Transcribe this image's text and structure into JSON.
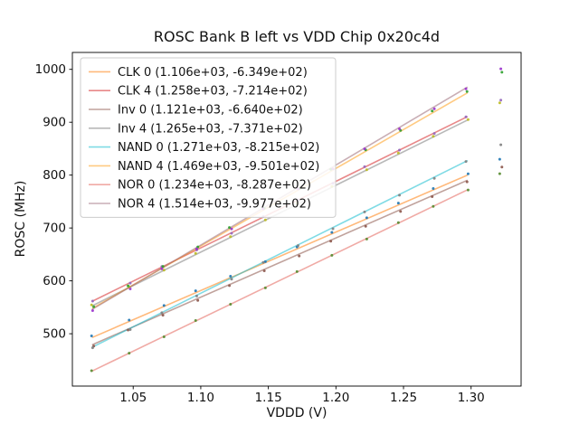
{
  "figure": {
    "window_title": "ROSC Bank B left vs VDD Chip 0x20c4d"
  },
  "chart_data": {
    "type": "scatter",
    "title": "ROSC Bank B left vs VDD Chip 0x20c4d",
    "xlabel": "VDDD (V)",
    "ylabel": "ROSC (MHz)",
    "xlim": [
      1.005,
      1.337
    ],
    "ylim": [
      401,
      1032
    ],
    "xticks": [
      "1.05",
      "1.10",
      "1.15",
      "1.20",
      "1.25",
      "1.30"
    ],
    "yticks": [
      "500",
      "600",
      "700",
      "800",
      "900",
      "1000"
    ],
    "grid": false,
    "legend_position": "upper-left",
    "fit_range": [
      1.02,
      1.297
    ],
    "x_points": [
      1.02,
      1.047,
      1.072,
      1.097,
      1.122,
      1.147,
      1.172,
      1.197,
      1.222,
      1.247,
      1.272,
      1.297,
      1.322
    ],
    "series": [
      {
        "name": "CLK 0",
        "legend_label": "CLK 0 (1.106e+03, -6.349e+02)",
        "slope": 1106.0,
        "intercept": -634.9,
        "line_color": "#ff7f0e",
        "dot_color": "#1f77b4",
        "y_points": [
          493.2,
          523.1,
          550.7,
          578.4,
          606.0,
          633.7,
          661.3,
          689.0,
          716.6,
          744.3,
          771.9,
          799.6,
          827.2
        ]
      },
      {
        "name": "CLK 4",
        "legend_label": "CLK 4 (1.258e+03, -7.214e+02)",
        "slope": 1258.0,
        "intercept": -721.4,
        "line_color": "#d62728",
        "dot_color": "#9467bd",
        "y_points": [
          561.8,
          595.7,
          627.2,
          658.6,
          690.1,
          721.5,
          753.0,
          784.4,
          815.9,
          847.3,
          878.8,
          910.2,
          941.7
        ]
      },
      {
        "name": "Inv 0",
        "legend_label": "Inv 0 (1.121e+03, -6.640e+02)",
        "slope": 1121.0,
        "intercept": -664.0,
        "line_color": "#8c564b",
        "dot_color": "#8c564b",
        "y_points": [
          479.4,
          509.7,
          537.7,
          565.7,
          593.8,
          621.8,
          649.8,
          677.8,
          705.9,
          733.9,
          761.9,
          789.9,
          818.0
        ]
      },
      {
        "name": "Inv 4",
        "legend_label": "Inv 4 (1.265e+03, -7.371e+02)",
        "slope": 1265.0,
        "intercept": -737.1,
        "line_color": "#7f7f7f",
        "dot_color": "#bcbd22",
        "y_points": [
          553.2,
          587.4,
          619.0,
          650.6,
          682.2,
          713.9,
          745.5,
          777.1,
          808.7,
          840.4,
          872.0,
          903.6,
          935.2
        ]
      },
      {
        "name": "NAND 0",
        "legend_label": "NAND 0 (1.271e+03, -8.215e+02)",
        "slope": 1271.0,
        "intercept": -821.5,
        "line_color": "#17becf",
        "dot_color": "#7f7f7f",
        "y_points": [
          474.9,
          509.2,
          541.0,
          572.8,
          604.6,
          636.3,
          668.1,
          699.9,
          731.7,
          763.4,
          795.2,
          827.0,
          858.8
        ]
      },
      {
        "name": "NAND 4",
        "legend_label": "NAND 4 (1.469e+03, -9.501e+02)",
        "slope": 1469.0,
        "intercept": -950.1,
        "line_color": "#ff9e1b",
        "dot_color": "#2ca02c",
        "y_points": [
          548.3,
          587.9,
          624.7,
          661.4,
          698.1,
          734.8,
          771.6,
          808.3,
          845.0,
          881.7,
          918.5,
          955.2,
          991.9
        ]
      },
      {
        "name": "NOR 0",
        "legend_label": "NOR 0 (1.234e+03, -8.287e+02)",
        "slope": 1234.0,
        "intercept": -828.7,
        "line_color": "#e3655b",
        "dot_color": "#558b2f",
        "y_points": [
          430.0,
          463.3,
          494.1,
          525.0,
          555.8,
          586.7,
          617.5,
          648.4,
          679.2,
          710.1,
          740.9,
          771.8,
          802.6
        ]
      },
      {
        "name": "NOR 4",
        "legend_label": "NOR 4 (1.514e+03, -9.977e+02)",
        "slope": 1514.0,
        "intercept": -997.7,
        "line_color": "#9c6b79",
        "dot_color": "#9932cc",
        "y_points": [
          546.6,
          587.5,
          625.3,
          663.2,
          701.0,
          738.9,
          776.7,
          814.6,
          852.4,
          890.3,
          928.1,
          966.0,
          1003.8
        ]
      }
    ]
  }
}
